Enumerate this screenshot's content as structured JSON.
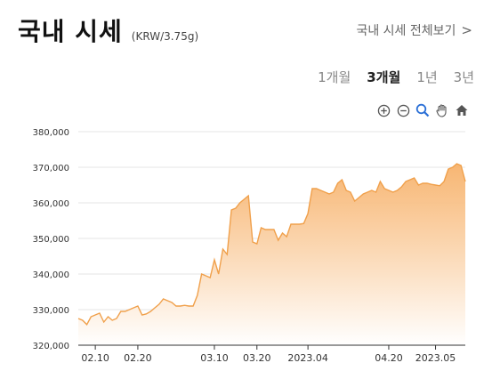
{
  "header": {
    "title": "국내 시세",
    "unit": "(KRW/3.75g)",
    "view_all": "국내 시세 전체보기",
    "chevron": ">"
  },
  "periods": [
    "1개월",
    "3개월",
    "1년",
    "3년"
  ],
  "active_period": "3개월",
  "tools": [
    {
      "name": "zoom-in-icon",
      "color": "#555555"
    },
    {
      "name": "zoom-out-icon",
      "color": "#555555"
    },
    {
      "name": "magnifier-icon",
      "color": "#2a6fd6"
    },
    {
      "name": "hand-pan-icon",
      "color": "#555555"
    },
    {
      "name": "home-icon",
      "color": "#555555"
    }
  ],
  "chart_data": {
    "type": "area",
    "title": "",
    "xlabel": "",
    "ylabel": "",
    "ylim": [
      320000,
      384000
    ],
    "yticks": [
      320000,
      330000,
      340000,
      350000,
      360000,
      370000,
      380000
    ],
    "ytick_labels": [
      "320,000",
      "330,000",
      "340,000",
      "350,000",
      "360,000",
      "370,000",
      "380,000"
    ],
    "xtick_labels": [
      "02.10",
      "02.20",
      "03.10",
      "03.20",
      "2023.04",
      "04.20",
      "2023.05"
    ],
    "xtick_dates": [
      "2023-02-10",
      "2023-02-20",
      "2023-03-10",
      "2023-03-20",
      "2023-04-01",
      "2023-04-20",
      "2023-05-01"
    ],
    "x_range": [
      "2023-02-06",
      "2023-05-08"
    ],
    "grid": "horizontal",
    "line_color": "#f0a04b",
    "fill_top_color": "#f7b26b",
    "fill_bottom_color": "#ffffff",
    "series": [
      {
        "x": [
          "2023-02-06",
          "2023-02-07",
          "2023-02-08",
          "2023-02-09",
          "2023-02-10",
          "2023-02-11",
          "2023-02-12",
          "2023-02-13",
          "2023-02-14",
          "2023-02-15",
          "2023-02-16",
          "2023-02-17",
          "2023-02-18",
          "2023-02-19",
          "2023-02-20",
          "2023-02-21",
          "2023-02-22",
          "2023-02-23",
          "2023-02-24",
          "2023-02-25",
          "2023-02-26",
          "2023-02-27",
          "2023-02-28",
          "2023-03-01",
          "2023-03-02",
          "2023-03-03",
          "2023-03-04",
          "2023-03-05",
          "2023-03-06",
          "2023-03-07",
          "2023-03-08",
          "2023-03-09",
          "2023-03-10",
          "2023-03-11",
          "2023-03-12",
          "2023-03-13",
          "2023-03-14",
          "2023-03-15",
          "2023-03-16",
          "2023-03-17",
          "2023-03-18",
          "2023-03-19",
          "2023-03-20",
          "2023-03-21",
          "2023-03-22",
          "2023-03-23",
          "2023-03-24",
          "2023-03-25",
          "2023-03-26",
          "2023-03-27",
          "2023-03-28",
          "2023-03-29",
          "2023-03-30",
          "2023-03-31",
          "2023-04-01",
          "2023-04-02",
          "2023-04-03",
          "2023-04-04",
          "2023-04-05",
          "2023-04-06",
          "2023-04-07",
          "2023-04-08",
          "2023-04-09",
          "2023-04-10",
          "2023-04-11",
          "2023-04-12",
          "2023-04-13",
          "2023-04-14",
          "2023-04-15",
          "2023-04-16",
          "2023-04-17",
          "2023-04-18",
          "2023-04-19",
          "2023-04-20",
          "2023-04-21",
          "2023-04-22",
          "2023-04-23",
          "2023-04-24",
          "2023-04-25",
          "2023-04-26",
          "2023-04-27",
          "2023-04-28",
          "2023-04-29",
          "2023-04-30",
          "2023-05-01",
          "2023-05-02",
          "2023-05-03",
          "2023-05-04",
          "2023-05-05",
          "2023-05-06",
          "2023-05-07",
          "2023-05-08"
        ],
        "values": [
          327500,
          327000,
          325800,
          328000,
          328500,
          329000,
          326500,
          328000,
          327000,
          327500,
          329500,
          329500,
          330000,
          330500,
          331000,
          328500,
          328800,
          329500,
          330500,
          331500,
          333000,
          332500,
          332000,
          331000,
          331000,
          331200,
          331000,
          331000,
          334000,
          340000,
          339500,
          339000,
          344000,
          340000,
          347000,
          345500,
          358000,
          358500,
          360000,
          361000,
          362000,
          349000,
          348500,
          353000,
          352500,
          352500,
          352500,
          349500,
          351500,
          350500,
          354000,
          354000,
          354000,
          354200,
          357000,
          364000,
          364000,
          363500,
          363000,
          362500,
          363000,
          365500,
          366500,
          363500,
          363000,
          360500,
          361500,
          362500,
          363000,
          363500,
          363000,
          366000,
          364000,
          363500,
          363000,
          363500,
          364500,
          366000,
          366500,
          367000,
          365000,
          365500,
          365500,
          365200,
          365000,
          364800,
          366000,
          369500,
          370000,
          371000,
          370500,
          366000
        ]
      }
    ]
  }
}
